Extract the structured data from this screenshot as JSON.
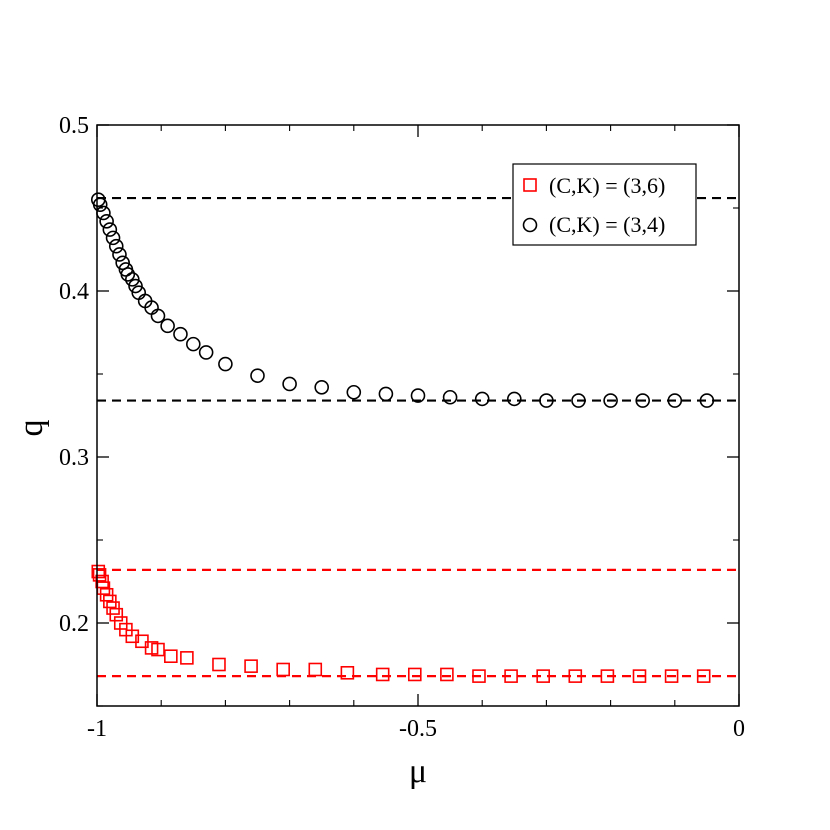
{
  "chart_data": {
    "type": "scatter",
    "xlabel": "μ",
    "ylabel": "q",
    "xlim": [
      -1.0,
      0.0
    ],
    "ylim": [
      0.15,
      0.5
    ],
    "xticks": [
      -1.0,
      -0.5,
      0.0
    ],
    "xtick_labels": [
      "-1",
      "-0.5",
      "0"
    ],
    "yticks": [
      0.2,
      0.3,
      0.4,
      0.5
    ],
    "ytick_labels": [
      "0.2",
      "0.3",
      "0.4",
      "0.5"
    ],
    "grid": false,
    "legend_position": "top-right",
    "series": [
      {
        "name": "(C,K) = (3,6)",
        "marker": "square",
        "color": "#ff0000",
        "x": [
          -0.998,
          -0.996,
          -0.992,
          -0.99,
          -0.985,
          -0.98,
          -0.975,
          -0.97,
          -0.963,
          -0.955,
          -0.945,
          -0.93,
          -0.915,
          -0.905,
          -0.885,
          -0.86,
          -0.81,
          -0.76,
          -0.71,
          -0.66,
          -0.61,
          -0.555,
          -0.505,
          -0.455,
          -0.405,
          -0.355,
          -0.305,
          -0.255,
          -0.205,
          -0.155,
          -0.105,
          -0.055
        ],
        "y": [
          0.231,
          0.229,
          0.225,
          0.221,
          0.217,
          0.213,
          0.209,
          0.205,
          0.2,
          0.196,
          0.192,
          0.189,
          0.185,
          0.184,
          0.18,
          0.179,
          0.175,
          0.174,
          0.172,
          0.172,
          0.17,
          0.169,
          0.169,
          0.169,
          0.168,
          0.168,
          0.168,
          0.168,
          0.168,
          0.168,
          0.168,
          0.168
        ]
      },
      {
        "name": "(C,K) = (3,4)",
        "marker": "circle",
        "color": "#000000",
        "x": [
          -0.998,
          -0.995,
          -0.99,
          -0.985,
          -0.98,
          -0.975,
          -0.97,
          -0.965,
          -0.96,
          -0.955,
          -0.952,
          -0.945,
          -0.94,
          -0.935,
          -0.925,
          -0.915,
          -0.905,
          -0.89,
          -0.87,
          -0.85,
          -0.83,
          -0.8,
          -0.75,
          -0.7,
          -0.65,
          -0.6,
          -0.55,
          -0.5,
          -0.45,
          -0.4,
          -0.35,
          -0.3,
          -0.25,
          -0.2,
          -0.15,
          -0.1,
          -0.05
        ],
        "y": [
          0.455,
          0.452,
          0.447,
          0.442,
          0.437,
          0.432,
          0.427,
          0.422,
          0.417,
          0.413,
          0.41,
          0.407,
          0.403,
          0.399,
          0.394,
          0.39,
          0.385,
          0.379,
          0.374,
          0.368,
          0.363,
          0.356,
          0.349,
          0.344,
          0.342,
          0.339,
          0.338,
          0.337,
          0.336,
          0.335,
          0.335,
          0.334,
          0.334,
          0.334,
          0.334,
          0.334,
          0.334
        ]
      }
    ],
    "reference_lines": [
      {
        "y": 0.456,
        "color": "#000000",
        "dashed": true
      },
      {
        "y": 0.334,
        "color": "#000000",
        "dashed": true
      },
      {
        "y": 0.232,
        "color": "#ff0000",
        "dashed": true
      },
      {
        "y": 0.168,
        "color": "#ff0000",
        "dashed": true
      }
    ]
  }
}
